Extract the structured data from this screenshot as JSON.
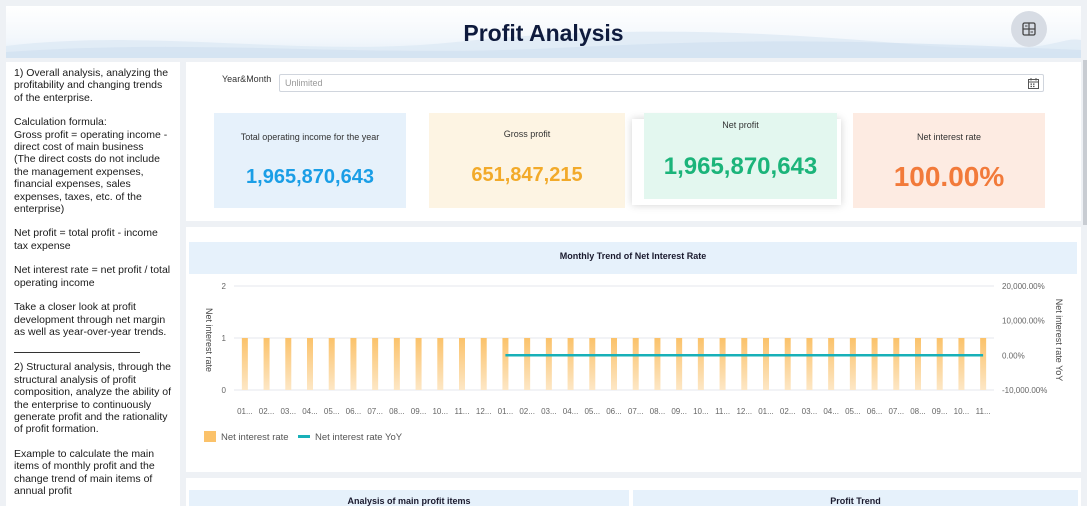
{
  "header": {
    "title": "Profit Analysis",
    "action_icon": "dashboard-grid-icon"
  },
  "left_panel": {
    "paragraphs": [
      "1) Overall analysis, analyzing the profitability and changing trends of the enterprise.",
      "Calculation formula:\nGross profit = operating income - direct cost of main business\n(The direct costs do not include the management expenses, financial expenses, sales expenses, taxes, etc. of the enterprise)",
      "Net profit = total profit - income tax expense",
      "Net interest rate = net profit / total operating income",
      "Take a closer look at profit development through net margin as well as year-over-year trends.",
      "2) Structural analysis, through the structural analysis of profit composition, analyze the ability of the enterprise to continuously generate profit and the rationality of profit formation.",
      "Example to calculate the main items of monthly profit and the change trend of main items of annual profit"
    ]
  },
  "filter": {
    "label": "Year&Month",
    "placeholder": "Unlimited",
    "icon": "calendar-icon"
  },
  "kpis": [
    {
      "label": "Total operating income for the year",
      "value": "1,965,870,643",
      "color": "#1a9ee6"
    },
    {
      "label": "Gross profit",
      "value": "651,847,215",
      "color": "#f2aa2a"
    },
    {
      "label": "Net profit",
      "value": "1,965,870,643",
      "color": "#1bb47a"
    },
    {
      "label": "Net interest rate",
      "value": "100.00%",
      "color": "#f27a3a"
    }
  ],
  "chart_data": {
    "type": "bar",
    "title": "Monthly Trend of Net Interest Rate",
    "categories": [
      "01...",
      "02...",
      "03...",
      "04...",
      "05...",
      "06...",
      "07...",
      "08...",
      "09...",
      "10...",
      "11...",
      "12...",
      "01...",
      "02...",
      "03...",
      "04...",
      "05...",
      "06...",
      "07...",
      "08...",
      "09...",
      "10...",
      "11...",
      "12...",
      "01...",
      "02...",
      "03...",
      "04...",
      "05...",
      "06...",
      "07...",
      "08...",
      "09...",
      "10...",
      "11..."
    ],
    "series": [
      {
        "name": "Net interest rate",
        "type": "bar",
        "axis": "left",
        "color": "#fbc26a",
        "values": [
          1,
          1,
          1,
          1,
          1,
          1,
          1,
          1,
          1,
          1,
          1,
          1,
          1,
          1,
          1,
          1,
          1,
          1,
          1,
          1,
          1,
          1,
          1,
          1,
          1,
          1,
          1,
          1,
          1,
          1,
          1,
          1,
          1,
          1,
          1
        ]
      },
      {
        "name": "Net interest rate YoY",
        "type": "line",
        "axis": "right",
        "color": "#18b0b8",
        "values": [
          null,
          null,
          null,
          null,
          null,
          null,
          null,
          null,
          null,
          null,
          null,
          null,
          0,
          0,
          0,
          0,
          0,
          0,
          0,
          0,
          0,
          0,
          0,
          0,
          0,
          0,
          0,
          0,
          0,
          0,
          0,
          0,
          0,
          0,
          0
        ]
      }
    ],
    "ylabel": "Net interest rate",
    "ylabel_right": "Net interest rate YoY",
    "ylim": [
      0,
      2
    ],
    "y_ticks": [
      "0",
      "1",
      "2"
    ],
    "ylim_right": [
      -10000,
      20000
    ],
    "y_ticks_right": [
      "-10,000.00%",
      "0.00%",
      "10,000.00%",
      "20,000.00%"
    ],
    "grid": true,
    "legend": "bottom-left"
  },
  "bottom": {
    "left_title": "Analysis of main profit items",
    "right_title": "Profit Trend"
  }
}
